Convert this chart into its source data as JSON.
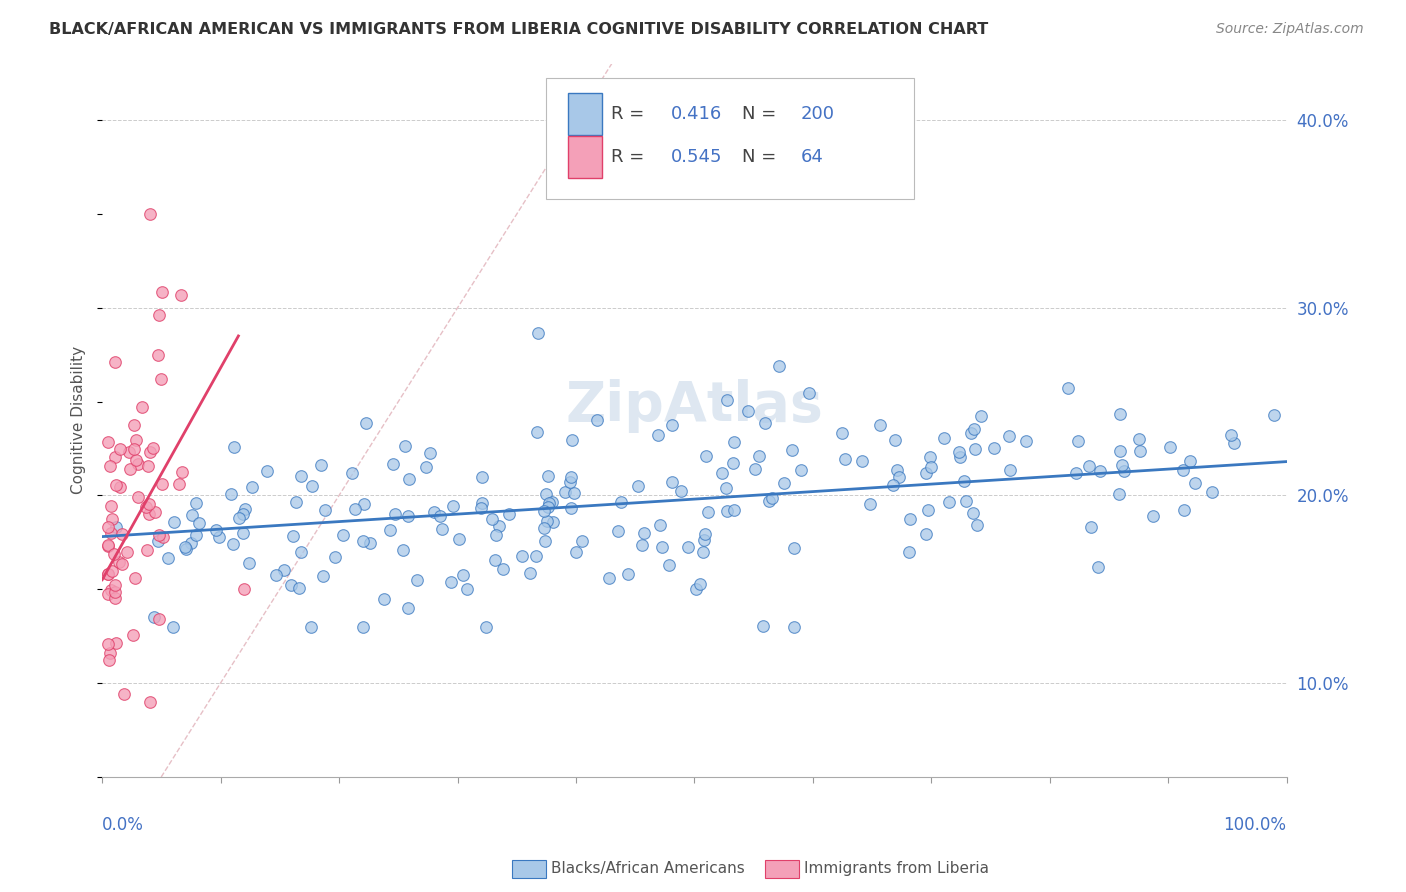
{
  "title": "BLACK/AFRICAN AMERICAN VS IMMIGRANTS FROM LIBERIA COGNITIVE DISABILITY CORRELATION CHART",
  "source": "Source: ZipAtlas.com",
  "ylabel": "Cognitive Disability",
  "xlim": [
    0,
    1.0
  ],
  "ylim": [
    0.05,
    0.43
  ],
  "yticks": [
    0.1,
    0.2,
    0.3,
    0.4
  ],
  "ytick_labels": [
    "10.0%",
    "20.0%",
    "30.0%",
    "40.0%"
  ],
  "blue_R": 0.416,
  "blue_N": 200,
  "pink_R": 0.545,
  "pink_N": 64,
  "blue_color": "#a8c8e8",
  "pink_color": "#f4a0b8",
  "blue_line_color": "#3a78c0",
  "pink_line_color": "#e0406a",
  "diagonal_color": "#e0b0b8",
  "grid_color": "#cccccc",
  "title_color": "#333333",
  "tick_label_color": "#4472c4",
  "watermark_text": "ZipAtlas",
  "watermark_color": "#c8d8e8",
  "legend_label_blue": "Blacks/African Americans",
  "legend_label_pink": "Immigrants from Liberia",
  "blue_line_start_y": 0.178,
  "blue_line_end_y": 0.218,
  "pink_line_start_x": 0.0,
  "pink_line_start_y": 0.155,
  "pink_line_end_x": 0.115,
  "pink_line_end_y": 0.285
}
